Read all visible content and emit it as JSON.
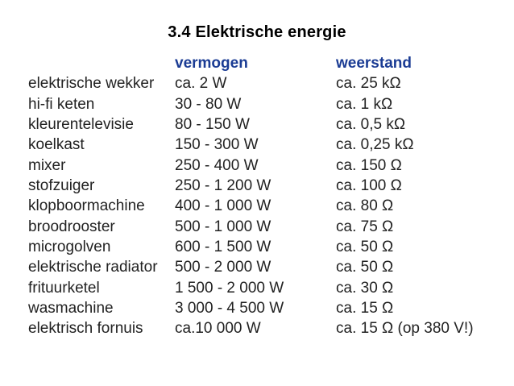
{
  "title": "3.4 Elektrische energie",
  "table": {
    "headers": {
      "appliance": "",
      "power": "vermogen",
      "resistance": "weerstand"
    },
    "rows": [
      {
        "appliance": "elektrische wekker",
        "power": "ca. 2 W",
        "resistance": "ca. 25 kΩ"
      },
      {
        "appliance": "hi-fi keten",
        "power": "30 - 80 W",
        "resistance": "ca. 1 kΩ"
      },
      {
        "appliance": "kleurentelevisie",
        "power": "80 - 150 W",
        "resistance": "ca. 0,5 kΩ"
      },
      {
        "appliance": "koelkast",
        "power": "150 - 300 W",
        "resistance": "ca. 0,25 kΩ"
      },
      {
        "appliance": "mixer",
        "power": "250 - 400 W",
        "resistance": "ca. 150 Ω"
      },
      {
        "appliance": "stofzuiger",
        "power": "250 - 1 200 W",
        "resistance": "ca. 100 Ω"
      },
      {
        "appliance": "klopboormachine",
        "power": "400 - 1 000 W",
        "resistance": "ca. 80 Ω"
      },
      {
        "appliance": "broodrooster",
        "power": "500 - 1 000 W",
        "resistance": "ca. 75 Ω"
      },
      {
        "appliance": "microgolven",
        "power": "600 - 1 500 W",
        "resistance": "ca. 50 Ω"
      },
      {
        "appliance": "elektrische radiator",
        "power": "500 - 2 000 W",
        "resistance": "ca. 50 Ω"
      },
      {
        "appliance": "frituurketel",
        "power": "1 500 - 2 000 W",
        "resistance": "ca. 30 Ω"
      },
      {
        "appliance": "wasmachine",
        "power": "3 000 - 4 500 W",
        "resistance": "ca. 15 Ω"
      },
      {
        "appliance": "elektrisch fornuis",
        "power": "ca.10 000 W",
        "resistance": "ca. 15 Ω (op 380 V!)"
      }
    ]
  },
  "colors": {
    "header_blue": "#1b3c94",
    "body_text": "#222222",
    "title_black": "#000000",
    "background": "#ffffff"
  }
}
